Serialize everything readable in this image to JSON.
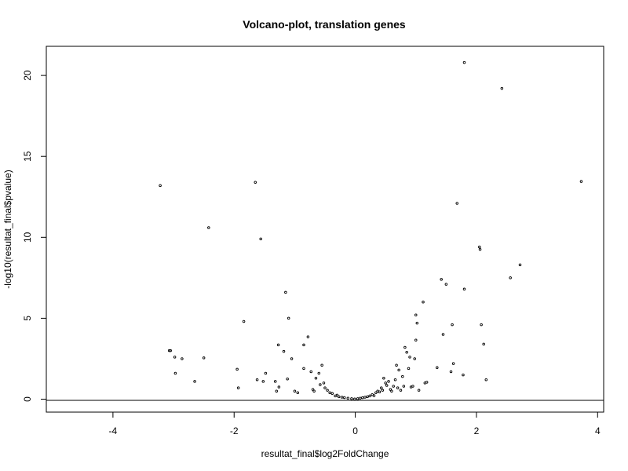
{
  "chart_data": {
    "type": "scatter",
    "title": "Volcano-plot, translation genes",
    "xlabel": "resultat_final$log2FoldChange",
    "ylabel": "-log10(resultat_final$pvalue)",
    "xlim": [
      -5.1,
      4.1
    ],
    "ylim": [
      -0.8,
      21.8
    ],
    "xticks": [
      -4,
      -2,
      0,
      2,
      4
    ],
    "yticks": [
      0,
      5,
      10,
      15,
      20
    ],
    "grid": false,
    "hline": 0,
    "points": [
      [
        -3.22,
        13.2
      ],
      [
        -3.07,
        3.0
      ],
      [
        -3.05,
        3.0
      ],
      [
        -2.98,
        2.6
      ],
      [
        -2.86,
        2.5
      ],
      [
        -2.97,
        1.6
      ],
      [
        -2.65,
        1.1
      ],
      [
        -2.5,
        2.55
      ],
      [
        -2.42,
        10.6
      ],
      [
        -1.95,
        1.85
      ],
      [
        -1.93,
        0.7
      ],
      [
        -1.84,
        4.8
      ],
      [
        -1.65,
        13.4
      ],
      [
        -1.62,
        1.2
      ],
      [
        -1.56,
        9.9
      ],
      [
        -1.52,
        1.1
      ],
      [
        -1.48,
        1.6
      ],
      [
        -1.32,
        1.1
      ],
      [
        -1.3,
        0.5
      ],
      [
        -1.27,
        3.35
      ],
      [
        -1.26,
        0.75
      ],
      [
        -1.18,
        2.95
      ],
      [
        -1.15,
        6.6
      ],
      [
        -1.12,
        1.25
      ],
      [
        -1.1,
        5.0
      ],
      [
        -1.05,
        2.5
      ],
      [
        -1.0,
        0.5
      ],
      [
        -0.95,
        0.4
      ],
      [
        -0.85,
        3.35
      ],
      [
        -0.85,
        1.9
      ],
      [
        -0.78,
        3.85
      ],
      [
        -0.73,
        1.7
      ],
      [
        -0.7,
        0.6
      ],
      [
        -0.68,
        0.5
      ],
      [
        -0.65,
        1.3
      ],
      [
        -0.6,
        1.6
      ],
      [
        -0.58,
        0.9
      ],
      [
        -0.55,
        2.1
      ],
      [
        -0.52,
        1.0
      ],
      [
        -0.5,
        0.7
      ],
      [
        -0.46,
        0.55
      ],
      [
        -0.42,
        0.4
      ],
      [
        -0.38,
        0.35
      ],
      [
        -0.33,
        0.2
      ],
      [
        -0.3,
        0.25
      ],
      [
        -0.27,
        0.15
      ],
      [
        -0.22,
        0.12
      ],
      [
        -0.18,
        0.1
      ],
      [
        -0.12,
        0.06
      ],
      [
        -0.06,
        0.03
      ],
      [
        -0.01,
        0.01
      ],
      [
        0.04,
        0.03
      ],
      [
        0.08,
        0.06
      ],
      [
        0.12,
        0.09
      ],
      [
        0.16,
        0.12
      ],
      [
        0.2,
        0.15
      ],
      [
        0.24,
        0.2
      ],
      [
        0.28,
        0.28
      ],
      [
        0.31,
        0.22
      ],
      [
        0.34,
        0.4
      ],
      [
        0.37,
        0.5
      ],
      [
        0.4,
        0.45
      ],
      [
        0.43,
        0.7
      ],
      [
        0.45,
        0.55
      ],
      [
        0.47,
        1.3
      ],
      [
        0.5,
        1.0
      ],
      [
        0.52,
        0.85
      ],
      [
        0.55,
        1.1
      ],
      [
        0.58,
        0.6
      ],
      [
        0.6,
        0.5
      ],
      [
        0.63,
        0.8
      ],
      [
        0.66,
        1.2
      ],
      [
        0.68,
        2.1
      ],
      [
        0.7,
        0.7
      ],
      [
        0.72,
        1.8
      ],
      [
        0.75,
        0.55
      ],
      [
        0.78,
        1.4
      ],
      [
        0.8,
        0.8
      ],
      [
        0.82,
        3.2
      ],
      [
        0.85,
        2.9
      ],
      [
        0.88,
        1.9
      ],
      [
        0.9,
        2.6
      ],
      [
        0.92,
        0.75
      ],
      [
        0.95,
        0.8
      ],
      [
        0.98,
        2.5
      ],
      [
        1.0,
        5.2
      ],
      [
        1.02,
        4.7
      ],
      [
        1.0,
        3.65
      ],
      [
        1.05,
        0.55
      ],
      [
        1.12,
        6.0
      ],
      [
        1.15,
        1.0
      ],
      [
        1.18,
        1.05
      ],
      [
        1.35,
        1.95
      ],
      [
        1.42,
        7.4
      ],
      [
        1.45,
        4.0
      ],
      [
        1.5,
        7.1
      ],
      [
        1.58,
        1.7
      ],
      [
        1.6,
        4.6
      ],
      [
        1.62,
        2.2
      ],
      [
        1.68,
        12.1
      ],
      [
        1.78,
        1.5
      ],
      [
        1.8,
        20.8
      ],
      [
        1.8,
        6.8
      ],
      [
        2.05,
        9.4
      ],
      [
        2.06,
        9.25
      ],
      [
        2.08,
        4.6
      ],
      [
        2.12,
        3.4
      ],
      [
        2.16,
        1.2
      ],
      [
        2.42,
        19.2
      ],
      [
        2.56,
        7.5
      ],
      [
        2.72,
        8.3
      ],
      [
        3.73,
        13.45
      ]
    ]
  }
}
